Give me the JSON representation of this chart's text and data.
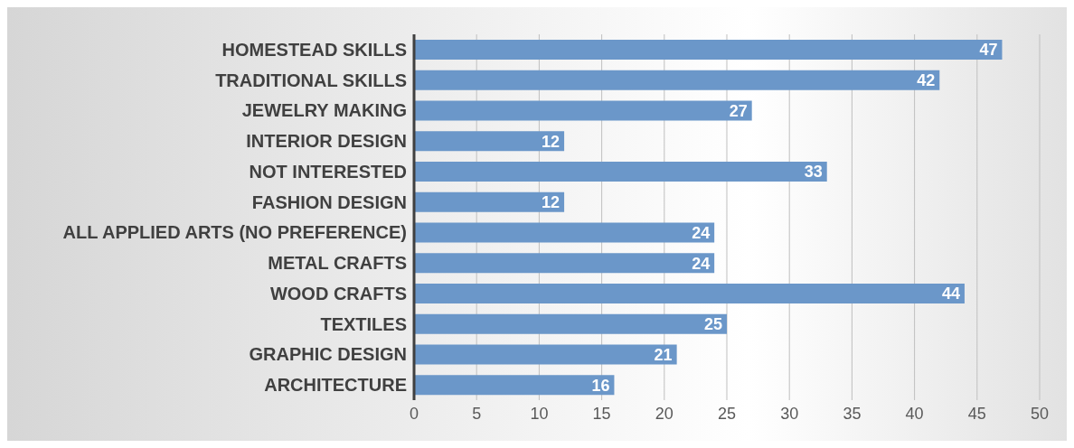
{
  "chart_data": {
    "type": "bar",
    "orientation": "horizontal",
    "categories": [
      "HOMESTEAD SKILLS",
      "TRADITIONAL SKILLS",
      "JEWELRY MAKING",
      "INTERIOR DESIGN",
      "NOT INTERESTED",
      "FASHION DESIGN",
      "ALL APPLIED ARTS (NO PREFERENCE)",
      "METAL CRAFTS",
      "WOOD CRAFTS",
      "TEXTILES",
      "GRAPHIC DESIGN",
      "ARCHITECTURE"
    ],
    "values": [
      47,
      42,
      27,
      12,
      33,
      12,
      24,
      24,
      44,
      25,
      21,
      16
    ],
    "color": "#6b97c9",
    "xlim": [
      0,
      50
    ],
    "xticks": [
      0,
      5,
      10,
      15,
      20,
      25,
      30,
      35,
      40,
      45,
      50
    ],
    "grid": "x",
    "data_labels": true
  }
}
